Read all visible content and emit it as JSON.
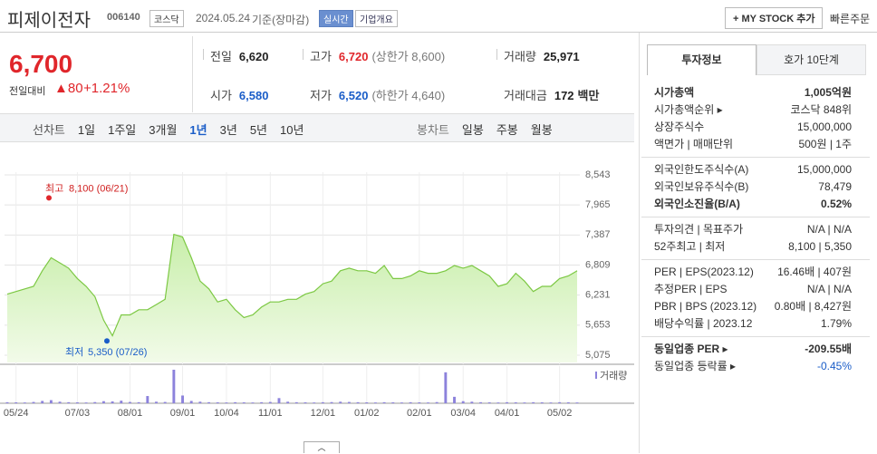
{
  "header": {
    "name": "피제이전자",
    "code": "006140",
    "market": "코스닥",
    "date": "2024.05.24",
    "basis": "기준(장마감)",
    "realtime": "실시간",
    "overview": "기업개요",
    "mystock": "+ MY STOCK 추가",
    "quick_order": "빠른주문"
  },
  "quote": {
    "price": "6,700",
    "change_label": "전일대비",
    "change": "▲80",
    "change_pct": "+1.21%",
    "stats": [
      {
        "label": "전일",
        "value": "6,620"
      },
      {
        "label": "고가",
        "value": "6,720",
        "note": "(상한가 8,600)"
      },
      {
        "label": "거래량",
        "value": "25,971"
      },
      {
        "label": "시가",
        "value": "6,580"
      },
      {
        "label": "저가",
        "value": "6,520",
        "note": "(하한가 4,640)"
      },
      {
        "label": "거래대금",
        "value": "172",
        "unit": "백만"
      }
    ]
  },
  "tabs": {
    "line_label": "선차트",
    "line": [
      "1일",
      "1주일",
      "3개월",
      "1년",
      "3년",
      "5년",
      "10년"
    ],
    "candle_label": "봉차트",
    "candle": [
      "일봉",
      "주봉",
      "월봉"
    ]
  },
  "chart_data": {
    "type": "line",
    "color": "#7cc843",
    "categories": [
      null,
      "05/24",
      null,
      null,
      null,
      null,
      null,
      null,
      "07/03",
      null,
      null,
      null,
      null,
      null,
      "08/01",
      null,
      null,
      null,
      null,
      null,
      "09/01",
      null,
      null,
      null,
      null,
      "10/04",
      null,
      null,
      null,
      null,
      "11/01",
      null,
      null,
      null,
      null,
      null,
      "12/01",
      null,
      null,
      null,
      null,
      "01/02",
      null,
      null,
      null,
      null,
      null,
      "02/01",
      null,
      null,
      null,
      null,
      "03/04",
      null,
      null,
      null,
      null,
      "04/01",
      null,
      null,
      null,
      null,
      null,
      "05/02",
      null,
      null
    ],
    "values": [
      6250,
      6300,
      6350,
      6400,
      6700,
      6950,
      6850,
      6750,
      6550,
      6400,
      6200,
      5750,
      5450,
      5850,
      5850,
      5950,
      5950,
      6050,
      6150,
      7400,
      7350,
      6950,
      6500,
      6350,
      6100,
      6150,
      5950,
      5800,
      5850,
      6000,
      6100,
      6100,
      6150,
      6150,
      6250,
      6300,
      6450,
      6500,
      6700,
      6750,
      6700,
      6700,
      6650,
      6800,
      6550,
      6550,
      6600,
      6700,
      6650,
      6650,
      6700,
      6800,
      6750,
      6800,
      6700,
      6600,
      6400,
      6450,
      6650,
      6500,
      6300,
      6400,
      6400,
      6550,
      6600,
      6700
    ],
    "volume": {
      "name": "거래량",
      "color": "#8c82dc",
      "values": [
        40000,
        35000,
        30000,
        50000,
        90000,
        120000,
        60000,
        40000,
        35000,
        30000,
        45000,
        80000,
        70000,
        100000,
        50000,
        40000,
        280000,
        60000,
        50000,
        1300000,
        300000,
        90000,
        60000,
        40000,
        35000,
        30000,
        40000,
        35000,
        30000,
        40000,
        50000,
        200000,
        60000,
        40000,
        35000,
        30000,
        40000,
        45000,
        60000,
        50000,
        40000,
        35000,
        30000,
        40000,
        35000,
        30000,
        40000,
        35000,
        30000,
        45000,
        1200000,
        250000,
        80000,
        60000,
        40000,
        35000,
        30000,
        40000,
        35000,
        30000,
        40000,
        35000,
        30000,
        40000,
        35000,
        30000
      ]
    },
    "ylim": [
      5075,
      8543
    ],
    "yticks": [
      {
        "value": 5075,
        "label": "5,075"
      },
      {
        "value": 5653,
        "label": "5,653"
      },
      {
        "value": 6231,
        "label": "6,231"
      },
      {
        "value": 6809,
        "label": "6,809"
      },
      {
        "value": 7387,
        "label": "7,387"
      },
      {
        "value": 7965,
        "label": "7,965"
      },
      {
        "value": 8543,
        "label": "8,543"
      }
    ],
    "max": {
      "label": "최고",
      "text": "8,100 (06/21)",
      "value": 8100
    },
    "min": {
      "label": "최저",
      "text": "5,350 (07/26)",
      "value": 5350
    }
  },
  "side": {
    "tabs": [
      "투자정보",
      "호가 10단계"
    ],
    "groups": [
      [
        [
          "시가총액",
          "1,005억원"
        ],
        [
          "시가총액순위 ▸",
          "코스닥 848위"
        ],
        [
          "상장주식수",
          "15,000,000"
        ],
        [
          "액면가 | 매매단위",
          "500원 | 1주"
        ]
      ],
      [
        [
          "외국인한도주식수(A)",
          "15,000,000"
        ],
        [
          "외국인보유주식수(B)",
          "78,479"
        ],
        [
          "외국인소진율(B/A)",
          "0.52%"
        ]
      ],
      [
        [
          "투자의견 | 목표주가",
          "N/A | N/A"
        ],
        [
          "52주최고 | 최저",
          "8,100 | 5,350"
        ]
      ],
      [
        [
          "PER | EPS(2023.12)",
          "16.46배 | 407원"
        ],
        [
          "추정PER | EPS",
          "N/A | N/A"
        ],
        [
          "PBR | BPS (2023.12)",
          "0.80배 | 8,427원"
        ],
        [
          "배당수익률 | 2023.12",
          "1.79%"
        ]
      ],
      [
        [
          "동일업종 PER ▸",
          "-209.55배"
        ],
        [
          "동일업종 등락률 ▸",
          "-0.45%"
        ]
      ]
    ]
  }
}
